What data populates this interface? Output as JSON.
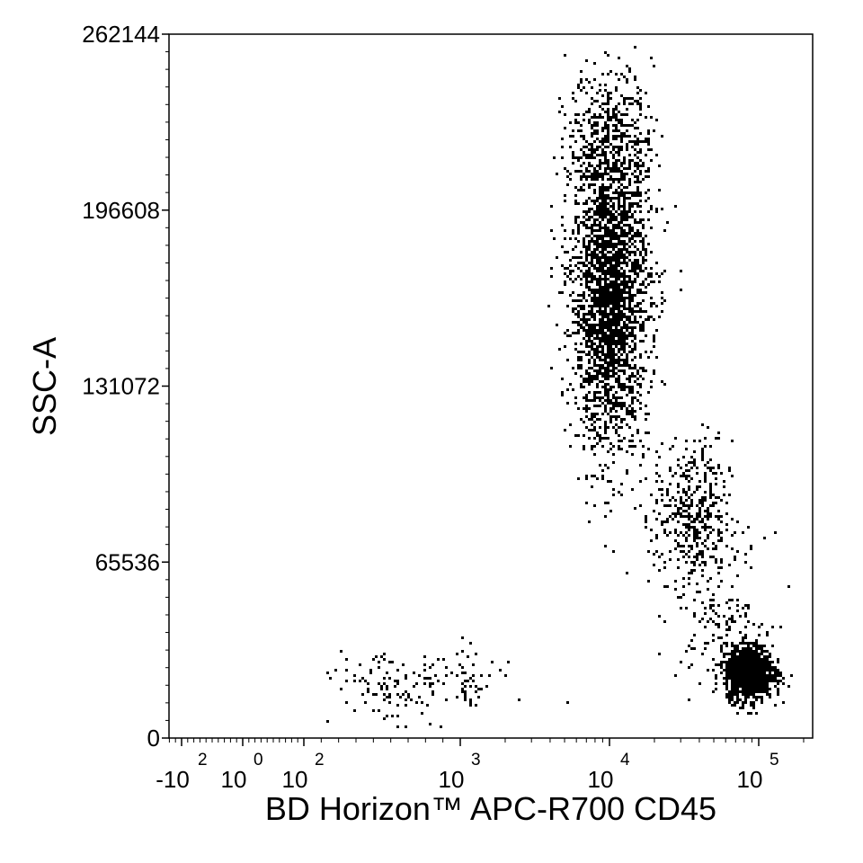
{
  "chart_data": {
    "type": "scatter",
    "xlabel": "BD Horizon™ APC-R700 CD45",
    "ylabel": "SSC-A",
    "x_scale": "biexponential",
    "ylim": [
      0,
      262144
    ],
    "y_ticks": [
      {
        "value": 0,
        "label": "0"
      },
      {
        "value": 65536,
        "label": "65536"
      },
      {
        "value": 131072,
        "label": "131072"
      },
      {
        "value": 196608,
        "label": "196608"
      },
      {
        "value": 262144,
        "label": "262144"
      }
    ],
    "x_ticks": [
      {
        "value": -100,
        "base": "-10",
        "exp": "2"
      },
      {
        "value": 0,
        "base": "10",
        "exp": "0"
      },
      {
        "value": 100,
        "base": "10",
        "exp": "2"
      },
      {
        "value": 1000,
        "base": "10",
        "exp": "3"
      },
      {
        "value": 10000,
        "base": "10",
        "exp": "4"
      },
      {
        "value": 100000,
        "base": "10",
        "exp": "5"
      }
    ],
    "populations": [
      {
        "name": "",
        "center_x": 10000,
        "center_y": 165000,
        "sd_log_x": 0.13,
        "sd_y": 28000,
        "count": 2600
      },
      {
        "name": "",
        "center_x": 10000,
        "center_y": 225000,
        "sd_log_x": 0.14,
        "sd_y": 12000,
        "count": 380
      },
      {
        "name": "",
        "center_x": 35000,
        "center_y": 83000,
        "sd_log_x": 0.13,
        "sd_y": 14000,
        "count": 420
      },
      {
        "name": "",
        "center_x": 85000,
        "center_y": 25000,
        "sd_log_x": 0.08,
        "sd_y": 5000,
        "count": 1300
      },
      {
        "name": "",
        "center_x": 55000,
        "center_y": 48000,
        "sd_log_x": 0.15,
        "sd_y": 14000,
        "count": 160
      },
      {
        "name": "",
        "center_x": 700,
        "center_y": 20000,
        "sd_log_x": 0.2,
        "sd_y": 6500,
        "count": 170
      }
    ],
    "colors": {
      "points": "#000000",
      "background": "#ffffff"
    },
    "grid": false,
    "legend": "none"
  }
}
